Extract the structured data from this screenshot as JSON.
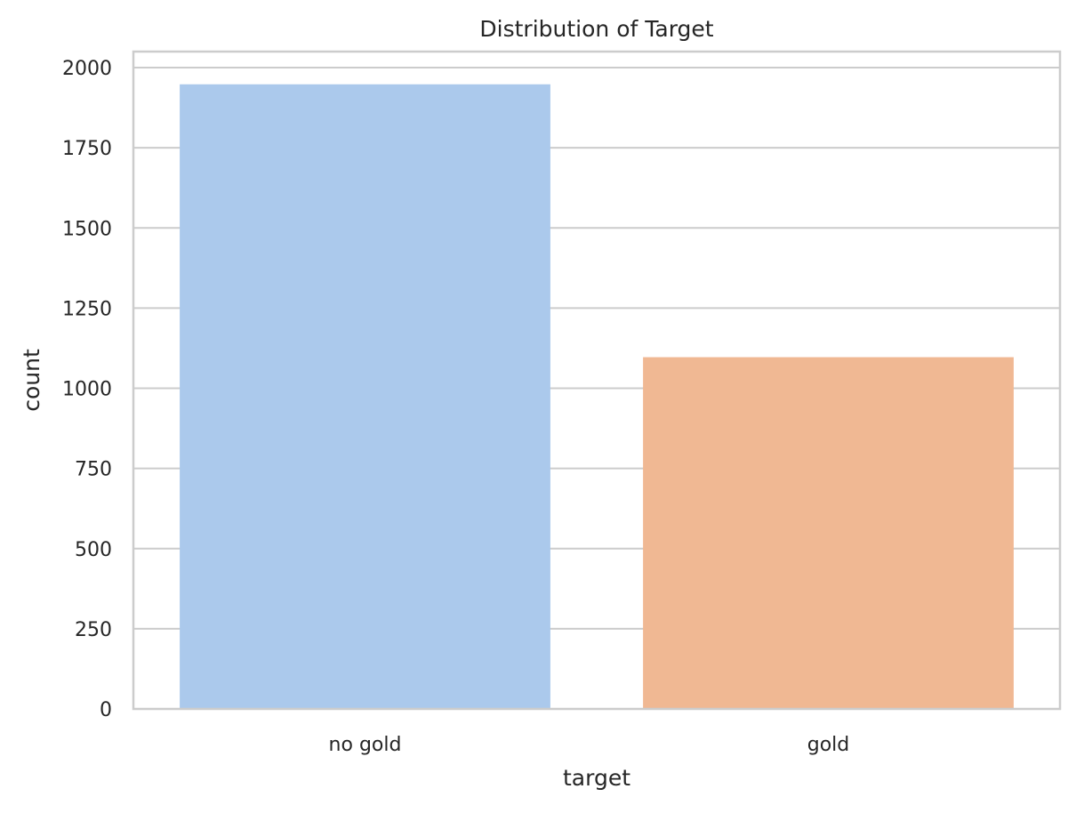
{
  "chart_data": {
    "type": "bar",
    "title": "Distribution of Target",
    "xlabel": "target",
    "ylabel": "count",
    "categories": [
      "no gold",
      "gold"
    ],
    "values": [
      1948,
      1097
    ],
    "ylim": [
      0,
      2050
    ],
    "yticks": [
      0,
      250,
      500,
      750,
      1000,
      1250,
      1500,
      1750,
      2000
    ],
    "ytick_labels": [
      "0",
      "250",
      "500",
      "750",
      "1000",
      "1250",
      "1500",
      "1750",
      "2000"
    ],
    "grid": true,
    "grid_axis": "y",
    "legend": "none",
    "colors": [
      "#abc9ec",
      "#f0b893"
    ],
    "grid_color": "#cccccc",
    "spine_color": "#cccccc",
    "text_color": "#262626"
  }
}
